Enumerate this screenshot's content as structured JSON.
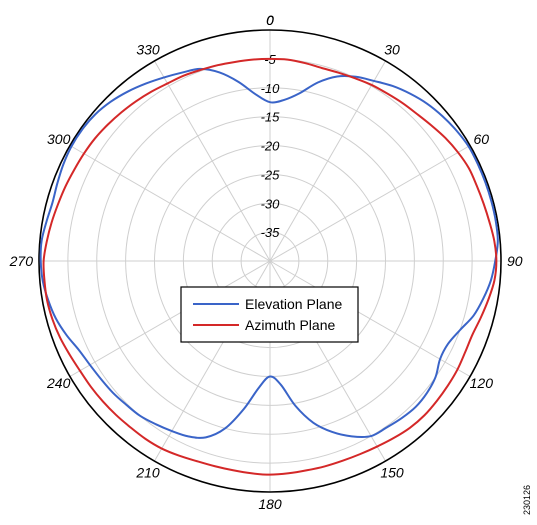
{
  "chart_data": {
    "type": "polar-line",
    "angle_labels": [
      "0",
      "30",
      "60",
      "90",
      "120",
      "150",
      "180",
      "210",
      "240",
      "270",
      "300",
      "330"
    ],
    "angle_label_values": [
      0,
      30,
      60,
      90,
      120,
      150,
      180,
      210,
      240,
      270,
      300,
      330
    ],
    "radial_ticks": [
      {
        "value": 0,
        "label": "0"
      },
      {
        "value": -5,
        "label": "-5"
      },
      {
        "value": -10,
        "label": "-10"
      },
      {
        "value": -15,
        "label": "-15"
      },
      {
        "value": -20,
        "label": "-20"
      },
      {
        "value": -25,
        "label": "-25"
      },
      {
        "value": -30,
        "label": "-30"
      },
      {
        "value": -35,
        "label": "-35"
      }
    ],
    "radial_range": [
      -40,
      0
    ],
    "radial_unit": "dB",
    "grid": true,
    "legend_position": "center-bottom",
    "series": [
      {
        "name": "Elevation Plane",
        "color": "#3a64c8",
        "angles": [
          0,
          5,
          10,
          15,
          20,
          25,
          30,
          35,
          40,
          45,
          50,
          55,
          60,
          65,
          70,
          75,
          80,
          85,
          90,
          95,
          100,
          105,
          110,
          115,
          120,
          125,
          130,
          135,
          140,
          145,
          150,
          155,
          160,
          165,
          170,
          175,
          180,
          185,
          190,
          195,
          200,
          205,
          210,
          215,
          220,
          225,
          230,
          235,
          240,
          245,
          250,
          255,
          260,
          265,
          270,
          275,
          280,
          285,
          290,
          295,
          300,
          305,
          310,
          315,
          320,
          325,
          330,
          335,
          340,
          345,
          350,
          355
        ],
        "values": [
          -12.5,
          -12,
          -10.5,
          -8,
          -6,
          -4.8,
          -4,
          -3,
          -2.2,
          -1.5,
          -1,
          -0.6,
          -0.3,
          -0.3,
          -0.3,
          -0.3,
          -0.3,
          -0.4,
          -1,
          -1.6,
          -2.5,
          -3.5,
          -5,
          -6,
          -6,
          -5,
          -4.5,
          -4.3,
          -4.5,
          -4.8,
          -5,
          -6.5,
          -8.5,
          -11,
          -14.5,
          -18.5,
          -20,
          -18,
          -14,
          -10,
          -7.5,
          -6.5,
          -6,
          -5.5,
          -5,
          -4.8,
          -4.5,
          -4.3,
          -4,
          -3.5,
          -2.5,
          -1.6,
          -1,
          -0.5,
          -0.3,
          -0.3,
          -0.7,
          -1,
          -0.8,
          -0.5,
          -0.3,
          -0.3,
          -0.5,
          -1,
          -1.7,
          -2.5,
          -3.3,
          -4,
          -4.6,
          -6.2,
          -8.5,
          -11
        ]
      },
      {
        "name": "Azimuth Plane",
        "color": "#d42828",
        "angles": [
          0,
          5,
          10,
          15,
          20,
          25,
          30,
          35,
          40,
          45,
          50,
          55,
          60,
          65,
          70,
          75,
          80,
          85,
          90,
          95,
          100,
          105,
          110,
          115,
          120,
          125,
          130,
          135,
          140,
          145,
          150,
          155,
          160,
          165,
          170,
          175,
          180,
          185,
          190,
          195,
          200,
          205,
          210,
          215,
          220,
          225,
          230,
          235,
          240,
          245,
          250,
          255,
          260,
          265,
          270,
          275,
          280,
          285,
          290,
          295,
          300,
          305,
          310,
          315,
          320,
          325,
          330,
          335,
          340,
          345,
          350,
          355
        ],
        "values": [
          -5,
          -5,
          -5.2,
          -5.4,
          -5.3,
          -5.1,
          -4.8,
          -4.6,
          -4.3,
          -4,
          -3.5,
          -2.9,
          -2.4,
          -2,
          -1.9,
          -1.7,
          -1.4,
          -1,
          -0.8,
          -1,
          -1.6,
          -2.2,
          -2.7,
          -2.7,
          -2.5,
          -2.4,
          -2.3,
          -2.2,
          -2.3,
          -2.6,
          -2.9,
          -3.1,
          -3.2,
          -3.2,
          -3.2,
          -3.1,
          -3,
          -3.1,
          -3.2,
          -3.2,
          -3.1,
          -2.8,
          -2.5,
          -2.4,
          -2.4,
          -2.3,
          -2.2,
          -2.1,
          -2,
          -1.7,
          -1.3,
          -1,
          -0.8,
          -0.8,
          -0.8,
          -1.2,
          -1.6,
          -2,
          -2.3,
          -2.6,
          -2.8,
          -3,
          -3.3,
          -3.6,
          -3.9,
          -4.2,
          -4.5,
          -4.6,
          -4.8,
          -4.9,
          -5,
          -5
        ]
      }
    ]
  },
  "ref_code": "230126"
}
